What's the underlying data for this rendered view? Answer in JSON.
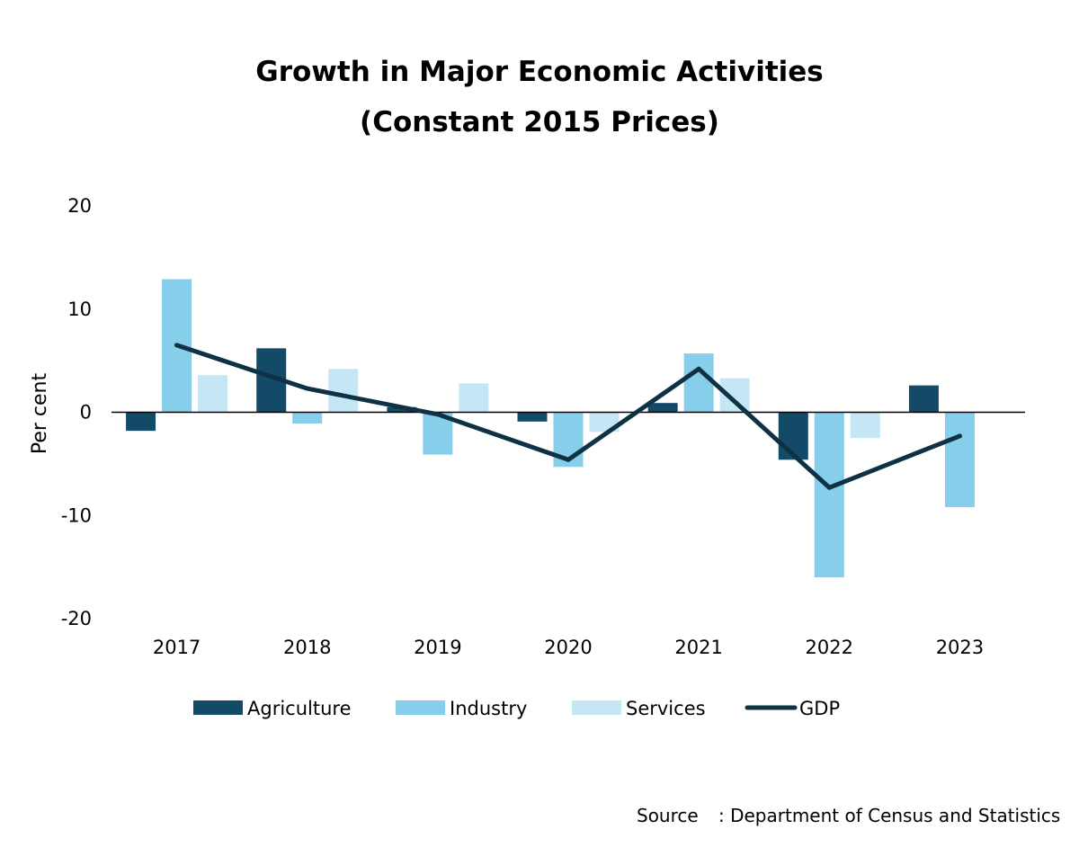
{
  "chart_data": {
    "type": "bar",
    "title_lines": [
      "Growth in Major Economic Activities",
      "(Constant 2015 Prices)"
    ],
    "ylabel": "Per cent",
    "xlabel": "",
    "ylim": [
      -20,
      20
    ],
    "yticks": [
      20,
      10,
      0,
      -10,
      -20
    ],
    "categories": [
      "2017",
      "2018",
      "2019",
      "2020",
      "2021",
      "2022",
      "2023"
    ],
    "series": [
      {
        "name": "Agriculture",
        "type": "bar",
        "color": "#124a68",
        "values": [
          -1.8,
          6.2,
          0.5,
          -0.9,
          0.9,
          -4.6,
          2.6
        ]
      },
      {
        "name": "Industry",
        "type": "bar",
        "color": "#87ceeb",
        "values": [
          12.9,
          -1.1,
          -4.1,
          -5.3,
          5.7,
          -16.0,
          -9.2
        ]
      },
      {
        "name": "Services",
        "type": "bar",
        "color": "#c5e6f5",
        "values": [
          3.6,
          4.2,
          2.8,
          -1.9,
          3.3,
          -2.5,
          0.0
        ]
      },
      {
        "name": "GDP",
        "type": "line",
        "color": "#0e3244",
        "values": [
          6.5,
          2.3,
          -0.2,
          -4.6,
          4.2,
          -7.3,
          -2.3
        ]
      }
    ],
    "legend_position": "bottom",
    "grid": false
  },
  "source": {
    "label": "Source",
    "text": ": Department of Census and Statistics"
  }
}
